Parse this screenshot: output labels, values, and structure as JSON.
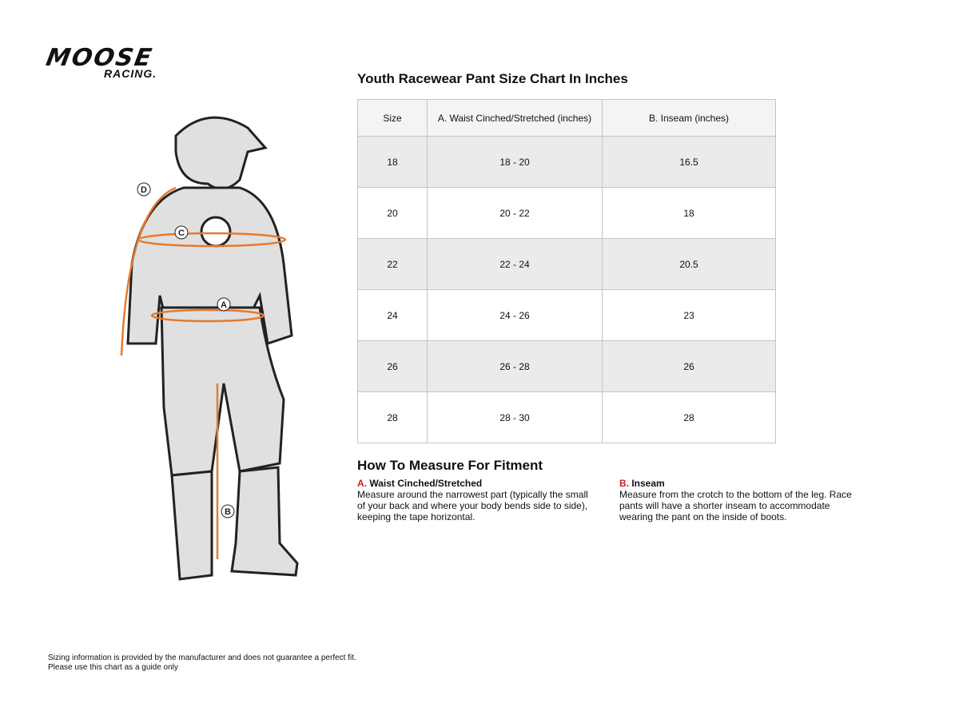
{
  "logo": {
    "line1": "MOOSE",
    "line2": "RACING."
  },
  "figure": {
    "labels": [
      "D",
      "C",
      "A",
      "B"
    ],
    "accent": "#e8792b"
  },
  "title": "Youth Racewear Pant Size Chart In Inches",
  "table": {
    "headers": [
      "Size",
      "A. Waist Cinched/Stretched (inches)",
      "B. Inseam (inches)"
    ],
    "rows": [
      [
        "18",
        "18 - 20",
        "16.5"
      ],
      [
        "20",
        "20 - 22",
        "18"
      ],
      [
        "22",
        "22 - 24",
        "20.5"
      ],
      [
        "24",
        "24 - 26",
        "23"
      ],
      [
        "26",
        "26 - 28",
        "26"
      ],
      [
        "28",
        "28 - 30",
        "28"
      ]
    ]
  },
  "howto": {
    "title": "How To Measure For Fitment",
    "a": {
      "key": "A.",
      "label": "Waist Cinched/Stretched",
      "text": "Measure around the narrowest part (typically the small of your back and where your body bends side to side), keeping the tape horizontal."
    },
    "b": {
      "key": "B.",
      "label": "Inseam",
      "text": "Measure from the crotch to the bottom of the leg. Race pants will have a shorter inseam to accommodate wearing the pant on the inside of boots."
    }
  },
  "footer": {
    "line1": "Sizing information is provided by the manufacturer and does not guarantee a perfect fit.",
    "line2": "Please use this chart as a guide only"
  }
}
